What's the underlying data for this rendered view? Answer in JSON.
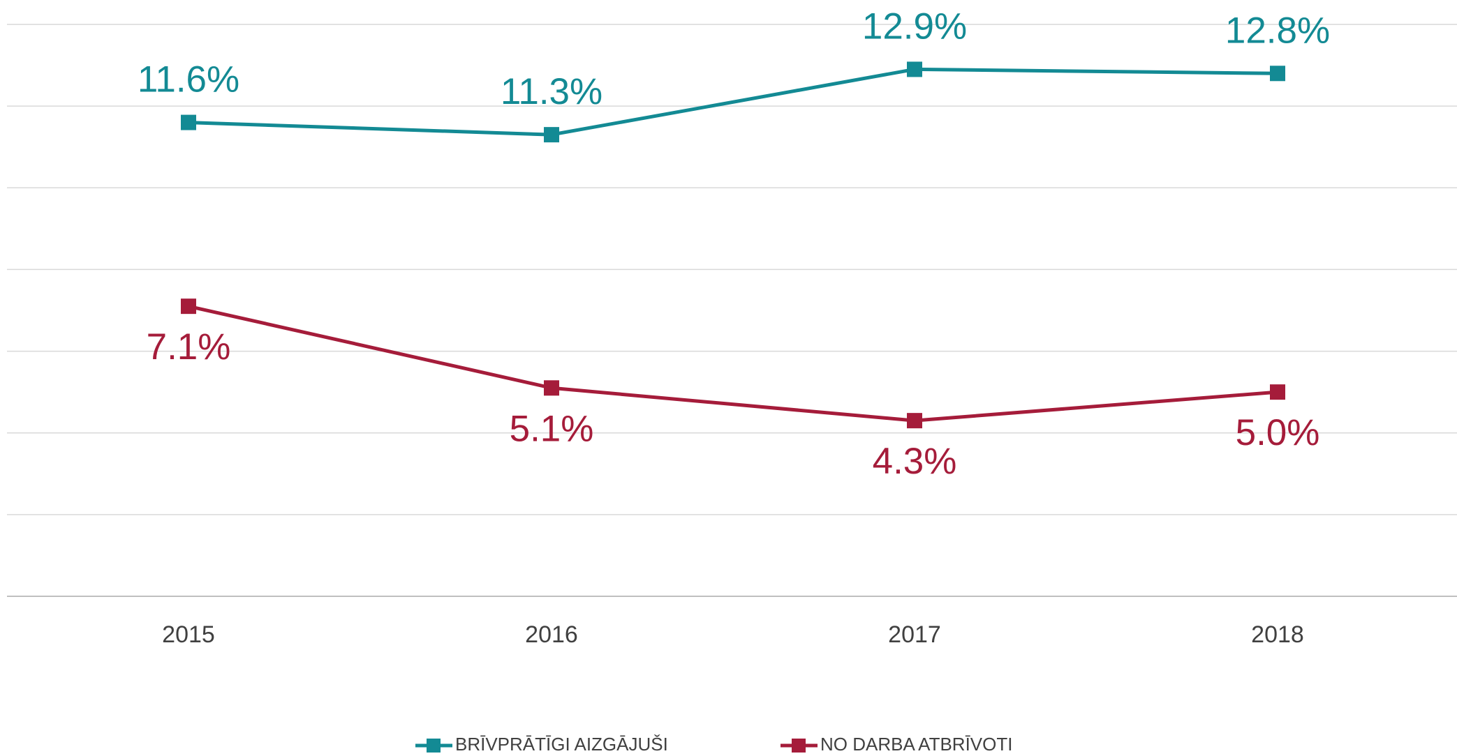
{
  "chart_data": {
    "type": "line",
    "categories": [
      "2015",
      "2016",
      "2017",
      "2018"
    ],
    "series": [
      {
        "name": "BRĪVPRĀTĪGI AIZGĀJUŠI",
        "color": "#138a94",
        "values": [
          11.6,
          11.3,
          12.9,
          12.8
        ],
        "value_labels": [
          "11.6%",
          "11.3%",
          "12.9%",
          "12.8%"
        ]
      },
      {
        "name": "NO DARBA ATBRĪVOTI",
        "color": "#a51c3a",
        "values": [
          7.1,
          5.1,
          4.3,
          5.0
        ],
        "value_labels": [
          "7.1%",
          "5.1%",
          "4.3%",
          "5.0%"
        ]
      }
    ],
    "ylim": [
      0,
      14
    ],
    "yticks": [
      0,
      2,
      4,
      6,
      8,
      10,
      12,
      14
    ],
    "grid": true,
    "legend": "bottom"
  }
}
